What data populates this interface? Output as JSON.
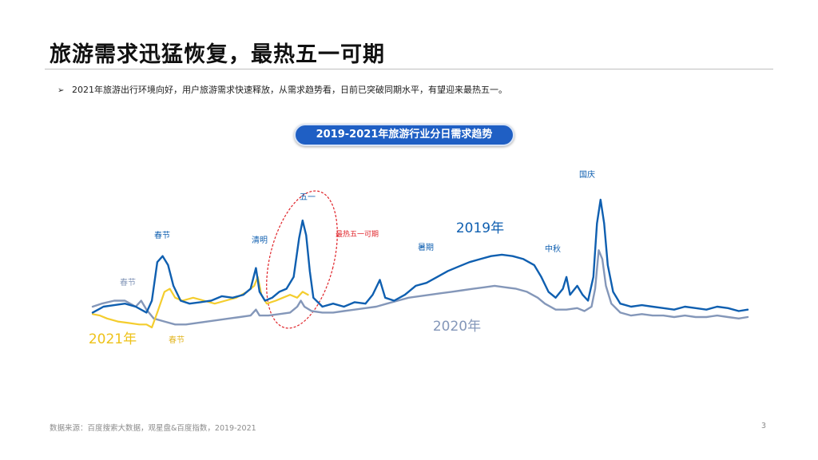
{
  "slide": {
    "title": "旅游需求迅猛恢复，最热五一可期",
    "bullet": "2021年旅游出行环境向好，用户旅游需求快速释放，从需求趋势看，日前已突破同期水平，有望迎来最热五一。",
    "bullet_icon": "arrow-bullet-icon",
    "chart_title": "2019-2021年旅游行业分日需求趋势",
    "footer": "数据来源：百度搜索大数据，观星盘&百度指数，2019-2021",
    "page_number": "3"
  },
  "colors": {
    "title_bar": "#1f5fc4",
    "series_2019": "#0f5fb0",
    "series_2020": "#8497b9",
    "series_2021": "#f4cd2e",
    "highlight": "#e0242a"
  },
  "chart_data": {
    "type": "line",
    "title": "2019-2021年旅游行业分日需求趋势",
    "x_unit": "day of year (approx.)",
    "y_unit": "relative search demand index (unlabeled axis)",
    "xlim": [
      0,
      365
    ],
    "ylim": [
      0,
      100
    ],
    "axes_visible": false,
    "grid": false,
    "series": [
      {
        "name": "2019年",
        "color": "#0f5fb0",
        "points": [
          [
            0,
            10
          ],
          [
            6,
            14
          ],
          [
            12,
            15
          ],
          [
            18,
            16
          ],
          [
            24,
            14
          ],
          [
            30,
            10
          ],
          [
            33,
            18
          ],
          [
            36,
            44
          ],
          [
            39,
            48
          ],
          [
            42,
            42
          ],
          [
            45,
            28
          ],
          [
            49,
            18
          ],
          [
            54,
            16
          ],
          [
            60,
            17
          ],
          [
            66,
            18
          ],
          [
            72,
            21
          ],
          [
            78,
            20
          ],
          [
            84,
            22
          ],
          [
            88,
            26
          ],
          [
            91,
            40
          ],
          [
            93,
            24
          ],
          [
            96,
            18
          ],
          [
            100,
            20
          ],
          [
            104,
            24
          ],
          [
            108,
            26
          ],
          [
            112,
            34
          ],
          [
            115,
            60
          ],
          [
            117,
            72
          ],
          [
            119,
            62
          ],
          [
            121,
            38
          ],
          [
            123,
            20
          ],
          [
            128,
            14
          ],
          [
            134,
            16
          ],
          [
            140,
            14
          ],
          [
            146,
            17
          ],
          [
            152,
            16
          ],
          [
            156,
            22
          ],
          [
            160,
            32
          ],
          [
            163,
            20
          ],
          [
            168,
            18
          ],
          [
            174,
            22
          ],
          [
            180,
            28
          ],
          [
            186,
            30
          ],
          [
            192,
            34
          ],
          [
            198,
            38
          ],
          [
            204,
            41
          ],
          [
            210,
            44
          ],
          [
            216,
            46
          ],
          [
            222,
            48
          ],
          [
            228,
            49
          ],
          [
            234,
            48
          ],
          [
            240,
            46
          ],
          [
            246,
            42
          ],
          [
            250,
            34
          ],
          [
            254,
            24
          ],
          [
            258,
            20
          ],
          [
            262,
            26
          ],
          [
            264,
            34
          ],
          [
            266,
            22
          ],
          [
            270,
            28
          ],
          [
            273,
            22
          ],
          [
            276,
            18
          ],
          [
            279,
            34
          ],
          [
            281,
            70
          ],
          [
            283,
            86
          ],
          [
            285,
            70
          ],
          [
            287,
            42
          ],
          [
            290,
            24
          ],
          [
            294,
            16
          ],
          [
            300,
            14
          ],
          [
            306,
            15
          ],
          [
            312,
            14
          ],
          [
            318,
            13
          ],
          [
            324,
            12
          ],
          [
            330,
            14
          ],
          [
            336,
            13
          ],
          [
            342,
            12
          ],
          [
            348,
            14
          ],
          [
            354,
            13
          ],
          [
            360,
            11
          ],
          [
            365,
            12
          ]
        ]
      },
      {
        "name": "2020年",
        "color": "#8497b9",
        "points": [
          [
            0,
            14
          ],
          [
            5,
            16
          ],
          [
            12,
            18
          ],
          [
            18,
            18
          ],
          [
            24,
            14
          ],
          [
            27,
            18
          ],
          [
            30,
            12
          ],
          [
            34,
            6
          ],
          [
            40,
            4
          ],
          [
            46,
            2
          ],
          [
            52,
            2
          ],
          [
            58,
            3
          ],
          [
            64,
            4
          ],
          [
            70,
            5
          ],
          [
            76,
            6
          ],
          [
            82,
            7
          ],
          [
            88,
            8
          ],
          [
            91,
            12
          ],
          [
            93,
            8
          ],
          [
            98,
            8
          ],
          [
            104,
            9
          ],
          [
            110,
            10
          ],
          [
            114,
            14
          ],
          [
            116,
            18
          ],
          [
            118,
            14
          ],
          [
            122,
            11
          ],
          [
            128,
            10
          ],
          [
            134,
            10
          ],
          [
            140,
            11
          ],
          [
            146,
            12
          ],
          [
            152,
            13
          ],
          [
            158,
            14
          ],
          [
            164,
            16
          ],
          [
            170,
            18
          ],
          [
            176,
            20
          ],
          [
            182,
            21
          ],
          [
            188,
            22
          ],
          [
            194,
            23
          ],
          [
            200,
            24
          ],
          [
            206,
            25
          ],
          [
            212,
            26
          ],
          [
            218,
            27
          ],
          [
            224,
            28
          ],
          [
            230,
            27
          ],
          [
            236,
            26
          ],
          [
            242,
            24
          ],
          [
            248,
            20
          ],
          [
            252,
            16
          ],
          [
            258,
            12
          ],
          [
            264,
            12
          ],
          [
            270,
            13
          ],
          [
            274,
            11
          ],
          [
            278,
            14
          ],
          [
            280,
            26
          ],
          [
            282,
            52
          ],
          [
            284,
            46
          ],
          [
            286,
            28
          ],
          [
            289,
            16
          ],
          [
            294,
            10
          ],
          [
            300,
            8
          ],
          [
            306,
            9
          ],
          [
            312,
            8
          ],
          [
            318,
            8
          ],
          [
            324,
            7
          ],
          [
            330,
            8
          ],
          [
            336,
            7
          ],
          [
            342,
            7
          ],
          [
            348,
            8
          ],
          [
            354,
            7
          ],
          [
            360,
            6
          ],
          [
            365,
            7
          ]
        ]
      },
      {
        "name": "2021年",
        "color": "#f4cd2e",
        "points": [
          [
            0,
            9
          ],
          [
            4,
            8
          ],
          [
            8,
            6
          ],
          [
            14,
            4
          ],
          [
            20,
            3
          ],
          [
            26,
            2
          ],
          [
            30,
            2
          ],
          [
            33,
            0
          ],
          [
            36,
            10
          ],
          [
            40,
            24
          ],
          [
            43,
            26
          ],
          [
            46,
            20
          ],
          [
            50,
            18
          ],
          [
            56,
            20
          ],
          [
            62,
            18
          ],
          [
            68,
            16
          ],
          [
            74,
            18
          ],
          [
            80,
            20
          ],
          [
            86,
            24
          ],
          [
            90,
            28
          ],
          [
            92,
            34
          ],
          [
            94,
            22
          ],
          [
            97,
            16
          ],
          [
            102,
            18
          ],
          [
            106,
            20
          ],
          [
            110,
            22
          ],
          [
            114,
            20
          ],
          [
            117,
            24
          ],
          [
            120,
            22
          ]
        ]
      }
    ],
    "annotations": [
      "春节",
      "清明",
      "五一",
      "最热五一可期",
      "暑期",
      "中秋",
      "国庆",
      "春节",
      "春节"
    ],
    "series_labels": [
      "2019年",
      "2020年",
      "2021年"
    ]
  }
}
